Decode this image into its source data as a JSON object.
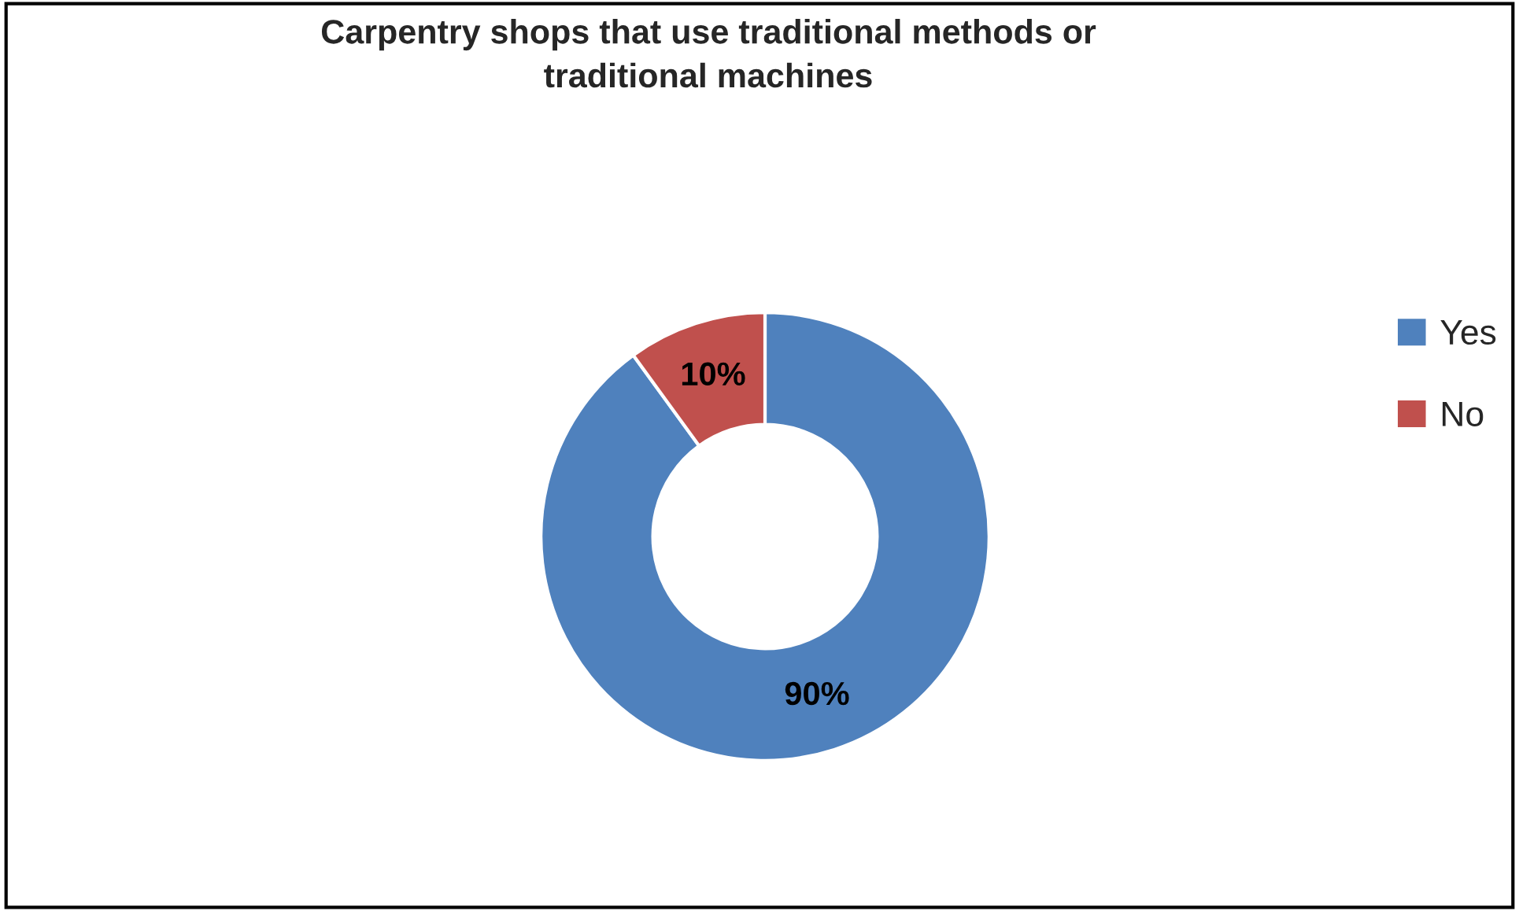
{
  "chart_data": {
    "type": "donut",
    "title": "Carpentry shops that use traditional methods or\ntraditional machines",
    "categories": [
      "Yes",
      "No"
    ],
    "values": [
      90,
      10
    ],
    "colors": [
      "#4f81bd",
      "#c0504d"
    ],
    "value_labels": [
      "90%",
      "10%"
    ],
    "legend": "right"
  }
}
